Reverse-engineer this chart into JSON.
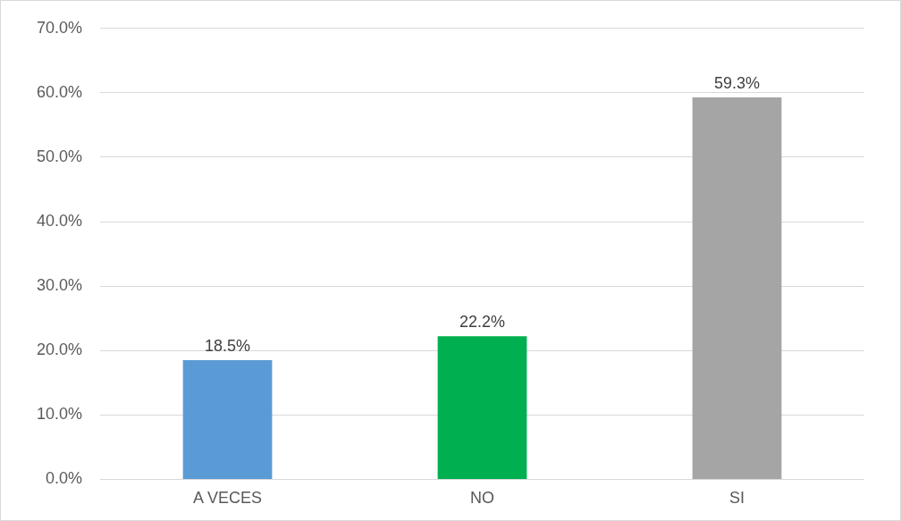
{
  "chart_data": {
    "type": "bar",
    "categories": [
      "A VECES",
      "NO",
      "SI"
    ],
    "values": [
      18.5,
      22.2,
      59.3
    ],
    "colors": [
      "#5b9bd5",
      "#00b050",
      "#a5a5a5"
    ],
    "value_labels": [
      "18.5%",
      "22.2%",
      "59.3%"
    ],
    "ylim": [
      0,
      70
    ],
    "yticks": [
      {
        "value": 0,
        "label": "0.0%"
      },
      {
        "value": 10,
        "label": "10.0%"
      },
      {
        "value": 20,
        "label": "20.0%"
      },
      {
        "value": 30,
        "label": "30.0%"
      },
      {
        "value": 40,
        "label": "40.0%"
      },
      {
        "value": 50,
        "label": "50.0%"
      },
      {
        "value": 60,
        "label": "60.0%"
      },
      {
        "value": 70,
        "label": "70.0%"
      }
    ],
    "grid": "y",
    "legend": false
  }
}
